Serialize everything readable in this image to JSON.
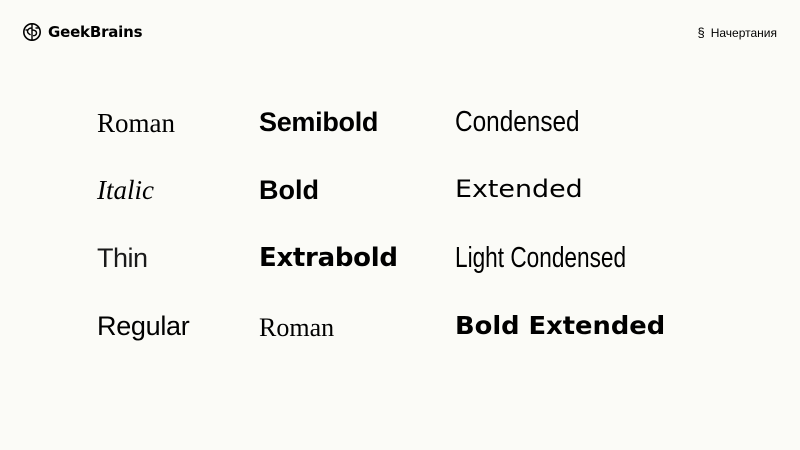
{
  "header": {
    "logo_text": "GeekBrains",
    "logo_icon": "brain-icon",
    "section_mark": "§",
    "section_title": "Начертания"
  },
  "specimens": {
    "col1": [
      "Roman",
      "Italic",
      "Thin",
      "Regular"
    ],
    "col2": [
      "Semibold",
      "Bold",
      "Extrabold",
      "Roman"
    ],
    "col3": [
      "Condensed",
      "Extended",
      "Light Condensed",
      "Bold Extended"
    ]
  }
}
